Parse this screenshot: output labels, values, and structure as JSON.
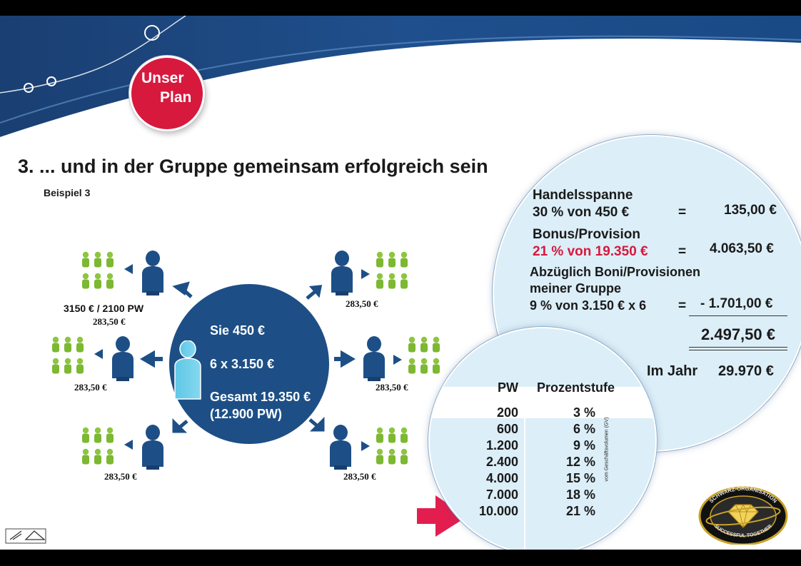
{
  "badge": {
    "line1": "Unser",
    "line2": "Plan"
  },
  "title": "3. ... und in der Gruppe gemeinsam erfolgreich sein",
  "example_label": "Beispiel 3",
  "center": {
    "line1": "Sie 450 €",
    "line2": "6 x 3.150 €",
    "line3": "Gesamt 19.350 €",
    "line4": "(12.900 PW)"
  },
  "group_label": "3150 € / 2100 PW",
  "group_values": [
    "283,50 €",
    "283,50 €",
    "283,50 €",
    "283,50 €",
    "283,50 €",
    "283,50 €"
  ],
  "calc": {
    "r1_label": "Handelsspanne",
    "r1_formula": "30 % von 450 €",
    "r1_eq": "=",
    "r1_value": "135,00 €",
    "r2_label": "Bonus/Provision",
    "r2_formula": "21 % von 19.350 €",
    "r2_eq": "=",
    "r2_value": "4.063,50 €",
    "r3_label1": "Abzüglich Boni/Provisionen",
    "r3_label2": "meiner Gruppe",
    "r3_formula": "9 % von 3.150 € x 6",
    "r3_eq": "=",
    "r3_value": "- 1.701,00 €",
    "total": "2.497,50 €",
    "year_label": "Im Jahr",
    "year_value": "29.970 €"
  },
  "table": {
    "col1": "PW",
    "col2": "Prozentstufe",
    "side_note": "vom Geschäftsvolumen (GV)",
    "rows": [
      {
        "pw": "200",
        "pct": "3 %"
      },
      {
        "pw": "600",
        "pct": "6 %"
      },
      {
        "pw": "1.200",
        "pct": "9 %"
      },
      {
        "pw": "2.400",
        "pct": "12 %"
      },
      {
        "pw": "4.000",
        "pct": "15 %"
      },
      {
        "pw": "7.000",
        "pct": "18 %"
      },
      {
        "pw": "10.000",
        "pct": "21 %"
      }
    ]
  },
  "logo": {
    "text_top": "SCHWARZ-ORGANISATION",
    "text_bottom": "SUCCESSFUL TOGETHER"
  },
  "colors": {
    "navy": "#1d4f86",
    "red": "#d7193d",
    "green": "#8cc63f",
    "light_blue": "#dceef8"
  }
}
